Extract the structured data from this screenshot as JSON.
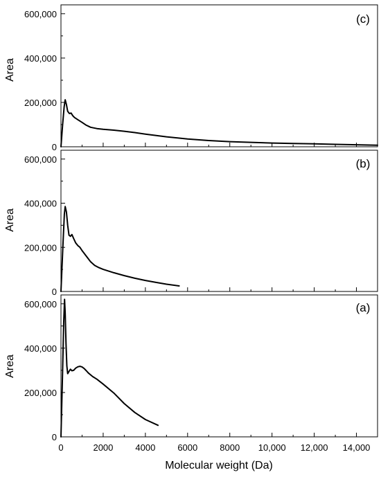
{
  "chart_data": [
    {
      "panel_label": "(c)",
      "type": "line",
      "ylabel": "Area",
      "xlim": [
        0,
        15000
      ],
      "ylim": [
        0,
        600000
      ],
      "yticks": [
        "0",
        "200,000",
        "400,000",
        "600,000"
      ],
      "ytick_values": [
        0,
        200000,
        400000,
        600000
      ],
      "series": [
        {
          "x": [
            0,
            80,
            150,
            200,
            260,
            320,
            400,
            480,
            560,
            640,
            800,
            1000,
            1200,
            1400,
            1700,
            2000,
            2500,
            3000,
            3500,
            4000,
            5000,
            6000,
            7000,
            8000,
            9000,
            10000,
            11000,
            12000,
            13000,
            14000,
            15000
          ],
          "y": [
            0,
            100000,
            180000,
            212000,
            190000,
            160000,
            150000,
            152000,
            140000,
            132000,
            122000,
            110000,
            97000,
            88000,
            82000,
            79000,
            75000,
            70000,
            64000,
            57000,
            45000,
            35000,
            28000,
            23000,
            20000,
            17000,
            15000,
            13000,
            11000,
            9000,
            7000
          ]
        }
      ]
    },
    {
      "panel_label": "(b)",
      "type": "line",
      "ylabel": "Area",
      "xlim": [
        0,
        15000
      ],
      "ylim": [
        0,
        600000
      ],
      "yticks": [
        "0",
        "200,000",
        "400,000",
        "600,000"
      ],
      "ytick_values": [
        0,
        200000,
        400000,
        600000
      ],
      "series": [
        {
          "x": [
            0,
            100,
            160,
            200,
            260,
            320,
            380,
            450,
            520,
            600,
            700,
            800,
            900,
            1000,
            1200,
            1400,
            1600,
            1800,
            2000,
            2500,
            3000,
            3500,
            4000,
            4500,
            5000,
            5600
          ],
          "y": [
            0,
            220000,
            350000,
            385000,
            360000,
            300000,
            255000,
            250000,
            258000,
            240000,
            220000,
            208000,
            200000,
            185000,
            160000,
            135000,
            118000,
            108000,
            100000,
            85000,
            72000,
            60000,
            50000,
            41000,
            33000,
            25000
          ]
        }
      ]
    },
    {
      "panel_label": "(a)",
      "type": "line",
      "ylabel": "Area",
      "xlabel": "Molecular weight (Da)",
      "xlim": [
        0,
        15000
      ],
      "xticks": [
        "0",
        "2000",
        "4000",
        "6000",
        "8000",
        "10,000",
        "12,000",
        "14,000"
      ],
      "xtick_values": [
        0,
        2000,
        4000,
        6000,
        8000,
        10000,
        12000,
        14000
      ],
      "ylim": [
        0,
        600000
      ],
      "yticks": [
        "0",
        "200,000",
        "400,000",
        "600,000"
      ],
      "ytick_values": [
        0,
        200000,
        400000,
        600000
      ],
      "series": [
        {
          "x": [
            0,
            80,
            130,
            170,
            200,
            240,
            280,
            320,
            380,
            450,
            520,
            600,
            700,
            800,
            900,
            1000,
            1100,
            1200,
            1300,
            1500,
            1700,
            2000,
            2500,
            3000,
            3500,
            4000,
            4600
          ],
          "y": [
            0,
            300000,
            520000,
            620000,
            560000,
            420000,
            320000,
            285000,
            295000,
            305000,
            298000,
            300000,
            310000,
            316000,
            318000,
            315000,
            308000,
            298000,
            288000,
            272000,
            260000,
            238000,
            198000,
            150000,
            110000,
            78000,
            52000
          ]
        }
      ]
    }
  ]
}
